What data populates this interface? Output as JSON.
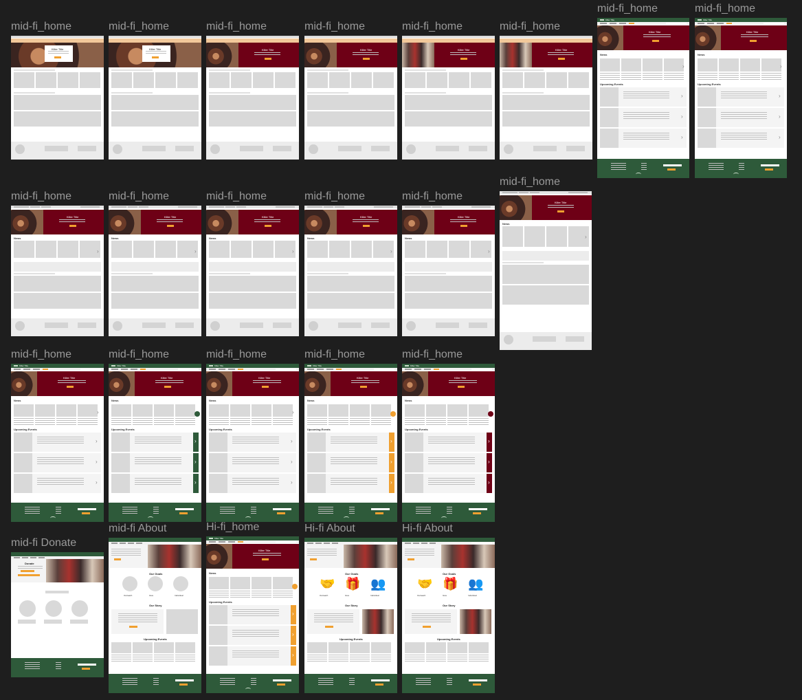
{
  "labels": {
    "home": "mid-fi_home",
    "donate": "mid-fi Donate",
    "about": "mid-fi About",
    "hi_home": "Hi-fi_home",
    "hi_about": "Hi-fi About"
  },
  "hero_title": "Killer Title",
  "sections": {
    "news": "News",
    "upcoming_events": "Upcoming Events",
    "our_goals": "Our Goals",
    "our_story": "Our Story"
  },
  "goals": [
    "Outreach",
    "Give",
    "Individual"
  ],
  "donate": {
    "title": "Donate"
  },
  "colors": {
    "canvas": "#1e1e1e",
    "maroon": "#6e0016",
    "green": "#2e5a3a",
    "orange": "#f0a030",
    "peach": "#f2c89a",
    "gray": "#d9d9d9"
  }
}
